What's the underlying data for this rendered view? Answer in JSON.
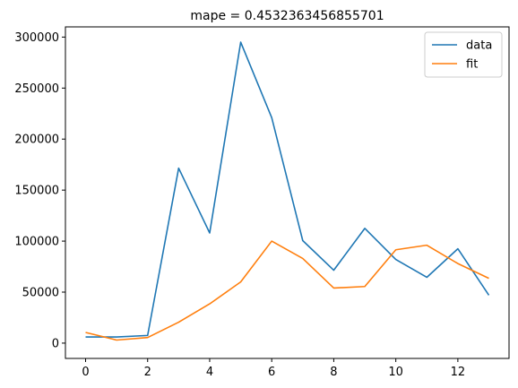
{
  "chart_data": {
    "type": "line",
    "title": "mape = 0.4532363456855701",
    "xlabel": "",
    "ylabel": "",
    "x": [
      0,
      1,
      2,
      3,
      4,
      5,
      6,
      7,
      8,
      9,
      10,
      11,
      12,
      13
    ],
    "xlim": [
      -0.65,
      13.65
    ],
    "ylim": [
      -15000,
      310000
    ],
    "xticks": [
      0,
      2,
      4,
      6,
      8,
      10,
      12
    ],
    "yticks": [
      0,
      50000,
      100000,
      150000,
      200000,
      250000,
      300000
    ],
    "grid": false,
    "legend_position": "top-right",
    "series": [
      {
        "name": "data",
        "color": "#1f77b4",
        "values": [
          6000,
          6000,
          7500,
          171500,
          108000,
          295000,
          221000,
          100500,
          71500,
          112500,
          82000,
          64500,
          92500,
          47000
        ]
      },
      {
        "name": "fit",
        "color": "#ff7f0e",
        "values": [
          10500,
          3000,
          5500,
          20500,
          38500,
          60000,
          100000,
          83000,
          54000,
          55500,
          91500,
          96000,
          78000,
          63500
        ]
      }
    ]
  }
}
